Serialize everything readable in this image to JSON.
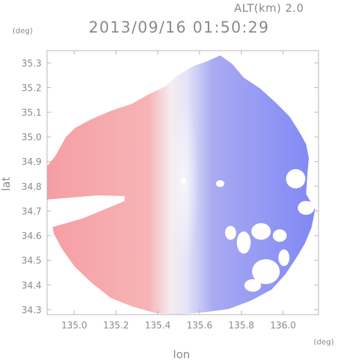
{
  "chart_data": {
    "type": "heatmap",
    "altitude_label": "ALT(km) 2.0",
    "title": "2013/09/16 01:50:29",
    "xlabel": "lon",
    "ylabel": "lat",
    "x_unit": "(deg)",
    "y_unit": "(deg)",
    "xlim": [
      134.87,
      136.17
    ],
    "ylim": [
      34.28,
      35.35
    ],
    "x_ticks": [
      "135.0",
      "135.2",
      "135.4",
      "135.6",
      "135.8",
      "136.0"
    ],
    "x_tick_values": [
      135.0,
      135.2,
      135.4,
      135.6,
      135.8,
      136.0
    ],
    "y_ticks": [
      "34.3",
      "34.4",
      "34.5",
      "34.6",
      "34.7",
      "34.8",
      "34.9",
      "35.0",
      "35.1",
      "35.2",
      "35.3"
    ],
    "y_tick_values": [
      34.3,
      34.4,
      34.5,
      34.6,
      34.7,
      34.8,
      34.9,
      35.0,
      35.1,
      35.2,
      35.3
    ],
    "radar_center": {
      "lon": 135.53,
      "lat": 34.82
    },
    "colors": {
      "approaching": "#7f86f4",
      "receding": "#f5a3a6",
      "neutral": "#f4f1f4",
      "frame": "#b4b4b4",
      "text": "#8a8a8a"
    }
  }
}
